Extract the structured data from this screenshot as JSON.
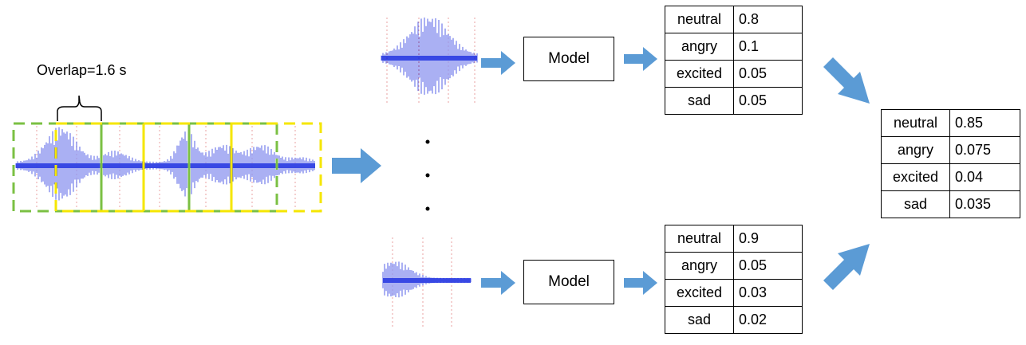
{
  "overlap_label": "Overlap=1.6 s",
  "model_label": "Model",
  "top_scores": [
    {
      "emotion": "neutral",
      "score": "0.8"
    },
    {
      "emotion": "angry",
      "score": "0.1"
    },
    {
      "emotion": "excited",
      "score": "0.05"
    },
    {
      "emotion": "sad",
      "score": "0.05"
    }
  ],
  "bottom_scores": [
    {
      "emotion": "neutral",
      "score": "0.9"
    },
    {
      "emotion": "angry",
      "score": "0.05"
    },
    {
      "emotion": "excited",
      "score": "0.03"
    },
    {
      "emotion": "sad",
      "score": "0.02"
    }
  ],
  "final_scores": [
    {
      "emotion": "neutral",
      "score": "0.85"
    },
    {
      "emotion": "angry",
      "score": "0.075"
    },
    {
      "emotion": "excited",
      "score": "0.04"
    },
    {
      "emotion": "sad",
      "score": "0.035"
    }
  ],
  "colors": {
    "arrow": "#5b9bd5",
    "waveform": "#1c2ee0",
    "window_green": "#7bc043",
    "window_yellow": "#f5e600",
    "grid_red": "#e07a7a"
  }
}
